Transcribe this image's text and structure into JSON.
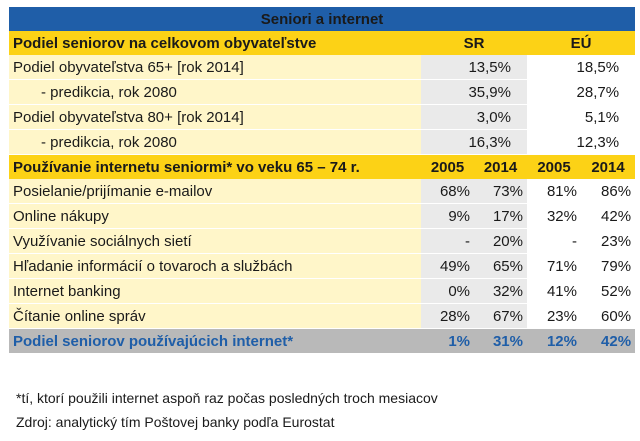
{
  "title": "Seniori a internet",
  "section1": {
    "header": "Podiel seniorov na celkovom obyvateľstve",
    "col_sr": "SR",
    "col_eu": "EÚ",
    "rows": [
      {
        "label": "Podiel obyvateľstva 65+ [rok 2014]",
        "sr": "13,5%",
        "eu": "18,5%"
      },
      {
        "label": "- predikcia, rok 2080",
        "sr": "35,9%",
        "eu": "28,7%"
      },
      {
        "label": "Podiel obyvateľstva 80+ [rok 2014]",
        "sr": "3,0%",
        "eu": "5,1%"
      },
      {
        "label": "- predikcia, rok 2080",
        "sr": "16,3%",
        "eu": "12,3%"
      }
    ]
  },
  "section2": {
    "header": "Používanie internetu seniormi* vo veku 65 – 74 r.",
    "years": [
      "2005",
      "2014",
      "2005",
      "2014"
    ],
    "rows": [
      {
        "label": "Posielanie/prijímanie e-mailov",
        "v": [
          "68%",
          "73%",
          "81%",
          "86%"
        ]
      },
      {
        "label": "Online nákupy",
        "v": [
          "9%",
          "17%",
          "32%",
          "42%"
        ]
      },
      {
        "label": "Využívanie sociálnych sietí",
        "v": [
          "-",
          "20%",
          "-",
          "23%"
        ]
      },
      {
        "label": "Hľadanie informácií o tovaroch a službách",
        "v": [
          "49%",
          "65%",
          "71%",
          "79%"
        ]
      },
      {
        "label": "Internet banking",
        "v": [
          "0%",
          "32%",
          "41%",
          "52%"
        ]
      },
      {
        "label": "Čítanie online správ",
        "v": [
          "28%",
          "67%",
          "23%",
          "60%"
        ]
      }
    ],
    "total": {
      "label": "Podiel seniorov používajúcich internet*",
      "v": [
        "1%",
        "31%",
        "12%",
        "42%"
      ]
    }
  },
  "notes": {
    "footnote": "*tí, ktorí použili internet aspoň raz počas posledných troch mesiacov",
    "source": "Zdroj: analytický tím Poštovej banky podľa Eurostat"
  },
  "colors": {
    "title_bg": "#1f5ea8",
    "header_bg": "#fcd216",
    "row_bg": "#fff6c9",
    "total_bg": "#b9b9b9"
  }
}
